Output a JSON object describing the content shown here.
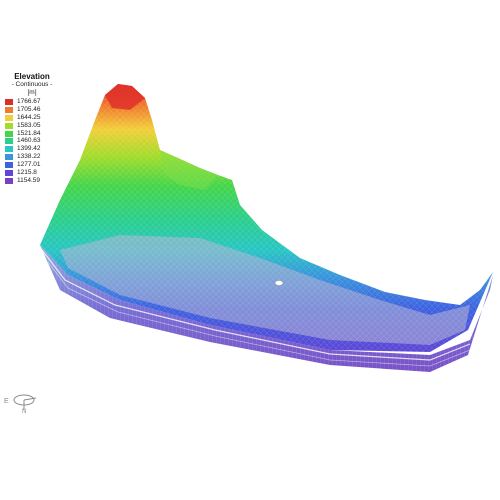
{
  "legend": {
    "title": "Elevation",
    "subtitle": "- Continuous -",
    "unit": "[m]",
    "entries": [
      {
        "value": "1766.67",
        "color": "#d7302b"
      },
      {
        "value": "1705.46",
        "color": "#f07a2e"
      },
      {
        "value": "1644.25",
        "color": "#f2cf3a"
      },
      {
        "value": "1583.05",
        "color": "#a3dc2b"
      },
      {
        "value": "1521.84",
        "color": "#45d54a"
      },
      {
        "value": "1460.63",
        "color": "#2ccf8a"
      },
      {
        "value": "1399.42",
        "color": "#28c6c4"
      },
      {
        "value": "1338.22",
        "color": "#3a94dc"
      },
      {
        "value": "1277.01",
        "color": "#3f62e0"
      },
      {
        "value": "1215.8",
        "color": "#5d47d6"
      },
      {
        "value": "1154.59",
        "color": "#7a3fc2"
      }
    ]
  },
  "axis_triad": {
    "x_label": "E",
    "y_label": "N"
  },
  "model": {
    "description_icon": "3d-terrain-mesh"
  }
}
